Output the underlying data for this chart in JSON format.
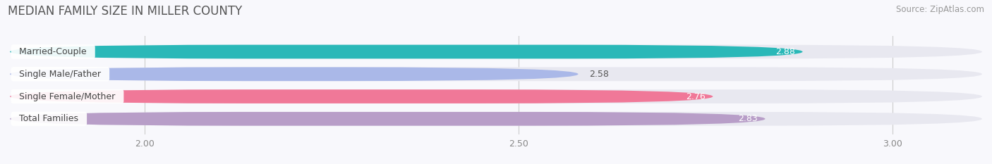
{
  "title": "MEDIAN FAMILY SIZE IN MILLER COUNTY",
  "source": "Source: ZipAtlas.com",
  "categories": [
    "Married-Couple",
    "Single Male/Father",
    "Single Female/Mother",
    "Total Families"
  ],
  "values": [
    2.88,
    2.58,
    2.76,
    2.83
  ],
  "bar_colors": [
    "#2ab8b8",
    "#aab8e8",
    "#f07898",
    "#b89ec8"
  ],
  "xlim": [
    1.82,
    3.12
  ],
  "xticks": [
    2.0,
    2.5,
    3.0
  ],
  "xtick_labels": [
    "2.00",
    "2.50",
    "3.00"
  ],
  "label_fontsize": 9,
  "value_fontsize": 9,
  "title_fontsize": 12,
  "source_fontsize": 8.5,
  "bar_height": 0.62,
  "label_color_inside": "#ffffff",
  "label_color_outside": "#555555",
  "background_color": "#f8f8fc",
  "bar_background_color": "#e8e8f0",
  "value_threshold": 2.65
}
